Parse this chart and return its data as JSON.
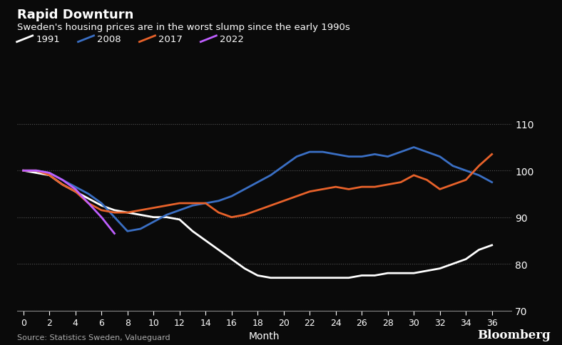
{
  "title": "Rapid Downturn",
  "subtitle": "Sweden's housing prices are in the worst slump since the early 1990s",
  "source": "Source: Statistics Sweden, Valueguard",
  "xlabel": "Month",
  "ylim": [
    70,
    113
  ],
  "xlim": [
    -0.5,
    37.5
  ],
  "yticks": [
    70,
    80,
    90,
    100,
    110
  ],
  "xticks": [
    0,
    2,
    4,
    6,
    8,
    10,
    12,
    14,
    16,
    18,
    20,
    22,
    24,
    26,
    28,
    30,
    32,
    34,
    36
  ],
  "background_color": "#0a0a0a",
  "text_color": "#ffffff",
  "series": {
    "1991": {
      "color": "#ffffff",
      "x": [
        0,
        1,
        2,
        3,
        4,
        5,
        6,
        7,
        8,
        9,
        10,
        11,
        12,
        13,
        14,
        15,
        16,
        17,
        18,
        19,
        20,
        21,
        22,
        23,
        24,
        25,
        26,
        27,
        28,
        29,
        30,
        31,
        32,
        33,
        34,
        35,
        36
      ],
      "y": [
        100,
        99.5,
        99,
        97,
        95.5,
        94,
        92.5,
        91.5,
        91,
        90.5,
        90,
        90,
        89.5,
        87,
        85,
        83,
        81,
        79,
        77.5,
        77,
        77,
        77,
        77,
        77,
        77,
        77,
        77.5,
        77.5,
        78,
        78,
        78,
        78.5,
        79,
        80,
        81,
        83,
        84
      ]
    },
    "2008": {
      "color": "#3a6fc4",
      "x": [
        0,
        1,
        2,
        3,
        4,
        5,
        6,
        7,
        8,
        9,
        10,
        11,
        12,
        13,
        14,
        15,
        16,
        17,
        18,
        19,
        20,
        21,
        22,
        23,
        24,
        25,
        26,
        27,
        28,
        29,
        30,
        31,
        32,
        33,
        34,
        35,
        36
      ],
      "y": [
        100,
        100,
        99.5,
        98,
        96.5,
        95,
        93,
        90,
        87,
        87.5,
        89,
        90.5,
        91.5,
        92.5,
        93,
        93.5,
        94.5,
        96,
        97.5,
        99,
        101,
        103,
        104,
        104,
        103.5,
        103,
        103,
        103.5,
        103,
        104,
        105,
        104,
        103,
        101,
        100,
        99,
        97.5
      ]
    },
    "2017": {
      "color": "#e8622a",
      "x": [
        0,
        1,
        2,
        3,
        4,
        5,
        6,
        7,
        8,
        9,
        10,
        11,
        12,
        13,
        14,
        15,
        16,
        17,
        18,
        19,
        20,
        21,
        22,
        23,
        24,
        25,
        26,
        27,
        28,
        29,
        30,
        31,
        32,
        33,
        34,
        35,
        36
      ],
      "y": [
        100,
        100,
        99,
        97,
        95.5,
        93,
        91.5,
        91,
        91,
        91.5,
        92,
        92.5,
        93,
        93,
        93,
        91,
        90,
        90.5,
        91.5,
        92.5,
        93.5,
        94.5,
        95.5,
        96,
        96.5,
        96,
        96.5,
        96.5,
        97,
        97.5,
        99,
        98,
        96,
        97,
        98,
        101,
        103.5
      ]
    },
    "2022": {
      "color": "#bf5fff",
      "x": [
        0,
        1,
        2,
        3,
        4,
        5,
        6,
        7
      ],
      "y": [
        100,
        100,
        99.5,
        98,
        96,
        93,
        90,
        86.5
      ]
    }
  },
  "legend_order": [
    "1991",
    "2008",
    "2017",
    "2022"
  ],
  "legend_colors": [
    "#ffffff",
    "#3a6fc4",
    "#e8622a",
    "#bf5fff"
  ],
  "legend_labels": [
    "1991",
    "2008",
    "2017",
    "2022"
  ]
}
